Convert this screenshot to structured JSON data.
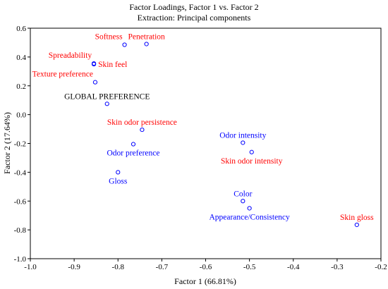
{
  "chart_data": {
    "type": "scatter",
    "title": "Factor Loadings, Factor 1 vs. Factor 2",
    "subtitle": "Extraction: Principal components",
    "xlabel": "Factor 1 (66.81%)",
    "ylabel": "Factor 2 (17.64%)",
    "xlim": [
      -1.0,
      -0.2
    ],
    "ylim": [
      -1.0,
      0.6
    ],
    "x_ticks": [
      "-1.0",
      "-0.9",
      "-0.8",
      "-0.7",
      "-0.6",
      "-0.5",
      "-0.4",
      "-0.3",
      "-0.2"
    ],
    "y_ticks": [
      "0.6",
      "0.4",
      "0.2",
      "0.0",
      "-0.2",
      "-0.4",
      "-0.6",
      "-0.8",
      "-1.0"
    ],
    "grid": false,
    "colors": {
      "red": "#ff0000",
      "blue": "#0000ff",
      "black": "#000000",
      "marker": "#0000ff"
    },
    "points": [
      {
        "label": "Softness",
        "x": -0.785,
        "y": 0.485,
        "color": "red",
        "label_pos": "above-left"
      },
      {
        "label": "Penetration",
        "x": -0.735,
        "y": 0.49,
        "color": "red",
        "label_pos": "above"
      },
      {
        "label": "Spreadability",
        "x": -0.855,
        "y": 0.355,
        "color": "red",
        "label_pos": "above-left"
      },
      {
        "label": "Skin feel",
        "x": -0.855,
        "y": 0.35,
        "color": "red",
        "label_pos": "right"
      },
      {
        "label": "Texture preference",
        "x": -0.852,
        "y": 0.225,
        "color": "red",
        "label_pos": "above-left"
      },
      {
        "label": "GLOBAL PREFERENCE",
        "x": -0.825,
        "y": 0.075,
        "color": "black",
        "label_pos": "above"
      },
      {
        "label": "Skin odor persistence",
        "x": -0.745,
        "y": -0.105,
        "color": "red",
        "label_pos": "above"
      },
      {
        "label": "Odor preference",
        "x": -0.765,
        "y": -0.205,
        "color": "blue",
        "label_pos": "below"
      },
      {
        "label": "Gloss",
        "x": -0.8,
        "y": -0.4,
        "color": "blue",
        "label_pos": "below"
      },
      {
        "label": "Odor intensity",
        "x": -0.515,
        "y": -0.195,
        "color": "blue",
        "label_pos": "above"
      },
      {
        "label": "Skin odor intensity",
        "x": -0.495,
        "y": -0.26,
        "color": "red",
        "label_pos": "below"
      },
      {
        "label": "Color",
        "x": -0.515,
        "y": -0.6,
        "color": "blue",
        "label_pos": "above"
      },
      {
        "label": "Appearance/Consistency",
        "x": -0.5,
        "y": -0.65,
        "color": "blue",
        "label_pos": "below"
      },
      {
        "label": "Skin gloss",
        "x": -0.255,
        "y": -0.765,
        "color": "red",
        "label_pos": "above"
      }
    ]
  }
}
